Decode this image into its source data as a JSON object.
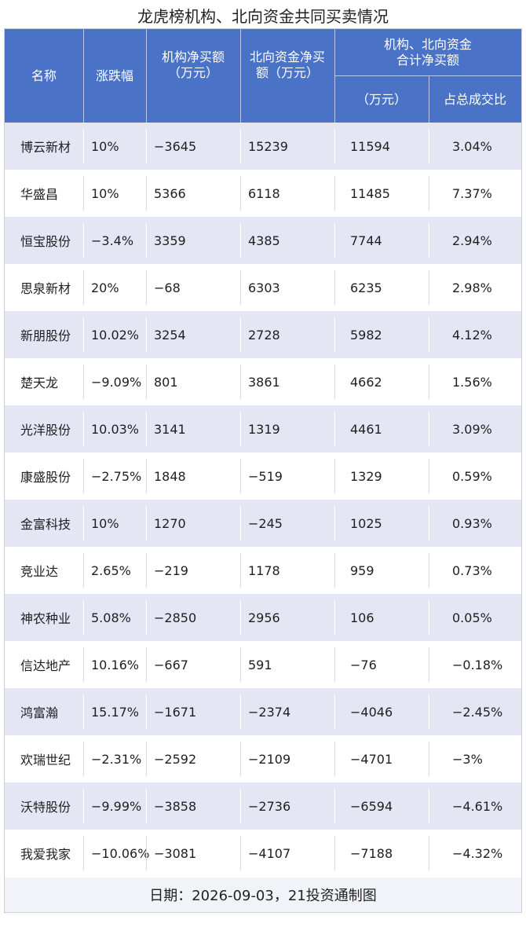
{
  "title": "龙虎榜机构、北向资金共同买卖情况",
  "header": {
    "name": "名称",
    "change": "涨跌幅",
    "inst_line1": "机构净买额",
    "inst_line2": "（万元）",
    "north_line1": "北向资金净买",
    "north_line2": "额（万元）",
    "combined_line1": "机构、北向资金",
    "combined_line2": "合计净买额",
    "combined_sub_amount": "（万元）",
    "combined_sub_ratio": "占总成交比"
  },
  "rows": [
    {
      "name": "博云新材",
      "change": "10%",
      "inst": "−3645",
      "north": "15239",
      "total": "11594",
      "ratio": "3.04%"
    },
    {
      "name": "华盛昌",
      "change": "10%",
      "inst": "5366",
      "north": "6118",
      "total": "11485",
      "ratio": "7.37%"
    },
    {
      "name": "恒宝股份",
      "change": "−3.4%",
      "inst": "3359",
      "north": "4385",
      "total": "7744",
      "ratio": "2.94%"
    },
    {
      "name": "思泉新材",
      "change": "20%",
      "inst": "−68",
      "north": "6303",
      "total": "6235",
      "ratio": "2.98%"
    },
    {
      "name": "新朋股份",
      "change": "10.02%",
      "inst": "3254",
      "north": "2728",
      "total": "5982",
      "ratio": "4.12%"
    },
    {
      "name": "楚天龙",
      "change": "−9.09%",
      "inst": "801",
      "north": "3861",
      "total": "4662",
      "ratio": "1.56%"
    },
    {
      "name": "光洋股份",
      "change": "10.03%",
      "inst": "3141",
      "north": "1319",
      "total": "4461",
      "ratio": "3.09%"
    },
    {
      "name": "康盛股份",
      "change": "−2.75%",
      "inst": "1848",
      "north": "−519",
      "total": "1329",
      "ratio": "0.59%"
    },
    {
      "name": "金富科技",
      "change": "10%",
      "inst": "1270",
      "north": "−245",
      "total": "1025",
      "ratio": "0.93%"
    },
    {
      "name": "竞业达",
      "change": "2.65%",
      "inst": "−219",
      "north": "1178",
      "total": "959",
      "ratio": "0.73%"
    },
    {
      "name": "神农种业",
      "change": "5.08%",
      "inst": "−2850",
      "north": "2956",
      "total": "106",
      "ratio": "0.05%"
    },
    {
      "name": "信达地产",
      "change": "10.16%",
      "inst": "−667",
      "north": "591",
      "total": "−76",
      "ratio": "−0.18%"
    },
    {
      "name": "鸿富瀚",
      "change": "15.17%",
      "inst": "−1671",
      "north": "−2374",
      "total": "−4046",
      "ratio": "−2.45%"
    },
    {
      "name": "欢瑞世纪",
      "change": "−2.31%",
      "inst": "−2592",
      "north": "−2109",
      "total": "−4701",
      "ratio": "−3%"
    },
    {
      "name": "沃特股份",
      "change": "−9.99%",
      "inst": "−3858",
      "north": "−2736",
      "total": "−6594",
      "ratio": "−4.61%"
    },
    {
      "name": "我爱我家",
      "change": "−10.06%",
      "inst": "−3081",
      "north": "−4107",
      "total": "−7188",
      "ratio": "−4.32%"
    }
  ],
  "footer": "日期：2026-09-03，21投资通制图",
  "colors": {
    "header_bg": "#4a72c6",
    "row_shade": "#e4e6f4",
    "row_plain": "#ffffff"
  }
}
